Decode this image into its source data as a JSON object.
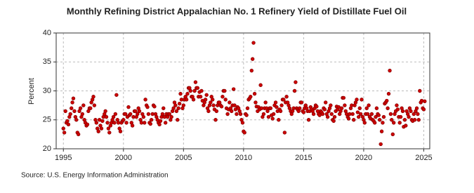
{
  "chart_data": {
    "type": "scatter",
    "title": "Monthly Refining District Appalachian No. 1 Refinery Yield of Distillate Fuel Oil",
    "y_label": "Percent",
    "source": "Source: U.S. Energy Information Administration",
    "color": "#cc0000",
    "grid": true,
    "xlim": [
      1994.4,
      2025.5
    ],
    "xticks": [
      1995,
      2000,
      2005,
      2010,
      2015,
      2020,
      2025
    ],
    "ylim": [
      20,
      40
    ],
    "yticks": [
      20,
      25,
      30,
      35,
      40
    ],
    "x": [
      1995,
      1995.08,
      1995.17,
      1995.25,
      1995.33,
      1995.42,
      1995.5,
      1995.58,
      1995.67,
      1995.75,
      1995.83,
      1995.92,
      1996,
      1996.08,
      1996.17,
      1996.25,
      1996.33,
      1996.42,
      1996.5,
      1996.58,
      1996.67,
      1996.75,
      1996.83,
      1996.92,
      1997,
      1997.08,
      1997.17,
      1997.25,
      1997.33,
      1997.42,
      1997.5,
      1997.58,
      1997.67,
      1997.75,
      1997.83,
      1997.92,
      1998,
      1998.08,
      1998.17,
      1998.25,
      1998.33,
      1998.42,
      1998.5,
      1998.58,
      1998.67,
      1998.75,
      1998.83,
      1998.92,
      1999,
      1999.08,
      1999.17,
      1999.25,
      1999.33,
      1999.42,
      1999.5,
      1999.58,
      1999.67,
      1999.75,
      1999.83,
      1999.92,
      2000,
      2000.08,
      2000.17,
      2000.25,
      2000.33,
      2000.42,
      2000.5,
      2000.58,
      2000.67,
      2000.75,
      2000.83,
      2000.92,
      2001,
      2001.08,
      2001.17,
      2001.25,
      2001.33,
      2001.42,
      2001.5,
      2001.58,
      2001.67,
      2001.75,
      2001.83,
      2001.92,
      2002,
      2002.08,
      2002.17,
      2002.25,
      2002.33,
      2002.42,
      2002.5,
      2002.58,
      2002.67,
      2002.75,
      2002.83,
      2002.92,
      2003,
      2003.08,
      2003.17,
      2003.25,
      2003.33,
      2003.42,
      2003.5,
      2003.58,
      2003.67,
      2003.75,
      2003.83,
      2003.92,
      2004,
      2004.08,
      2004.17,
      2004.25,
      2004.33,
      2004.42,
      2004.5,
      2004.58,
      2004.67,
      2004.75,
      2004.83,
      2004.92,
      2005,
      2005.08,
      2005.17,
      2005.25,
      2005.33,
      2005.42,
      2005.5,
      2005.58,
      2005.67,
      2005.75,
      2005.83,
      2005.92,
      2006,
      2006.08,
      2006.17,
      2006.25,
      2006.33,
      2006.42,
      2006.5,
      2006.58,
      2006.67,
      2006.75,
      2006.83,
      2006.92,
      2007,
      2007.08,
      2007.17,
      2007.25,
      2007.33,
      2007.42,
      2007.5,
      2007.58,
      2007.67,
      2007.75,
      2007.83,
      2007.92,
      2008,
      2008.08,
      2008.17,
      2008.25,
      2008.33,
      2008.42,
      2008.5,
      2008.58,
      2008.67,
      2008.75,
      2008.83,
      2008.92,
      2009,
      2009.08,
      2009.17,
      2009.25,
      2009.33,
      2009.42,
      2009.5,
      2009.58,
      2009.67,
      2009.75,
      2009.83,
      2009.92,
      2010,
      2010.08,
      2010.17,
      2010.25,
      2010.33,
      2010.42,
      2010.5,
      2010.58,
      2010.67,
      2010.75,
      2010.83,
      2010.92,
      2011,
      2011.08,
      2011.17,
      2011.25,
      2011.33,
      2011.42,
      2011.5,
      2011.58,
      2011.67,
      2011.75,
      2011.83,
      2011.92,
      2012,
      2012.08,
      2012.17,
      2012.25,
      2012.33,
      2012.42,
      2012.5,
      2012.58,
      2012.67,
      2012.75,
      2012.83,
      2012.92,
      2013,
      2013.08,
      2013.17,
      2013.25,
      2013.33,
      2013.42,
      2013.5,
      2013.58,
      2013.67,
      2013.75,
      2013.83,
      2013.92,
      2014,
      2014.08,
      2014.17,
      2014.25,
      2014.33,
      2014.42,
      2014.5,
      2014.58,
      2014.67,
      2014.75,
      2014.83,
      2014.92,
      2015,
      2015.08,
      2015.17,
      2015.25,
      2015.33,
      2015.42,
      2015.5,
      2015.58,
      2015.67,
      2015.75,
      2015.83,
      2015.92,
      2016,
      2016.08,
      2016.17,
      2016.25,
      2016.33,
      2016.42,
      2016.5,
      2016.58,
      2016.67,
      2016.75,
      2016.83,
      2016.92,
      2017,
      2017.08,
      2017.17,
      2017.25,
      2017.33,
      2017.42,
      2017.5,
      2017.58,
      2017.67,
      2017.75,
      2017.83,
      2017.92,
      2018,
      2018.08,
      2018.17,
      2018.25,
      2018.33,
      2018.42,
      2018.5,
      2018.58,
      2018.67,
      2018.75,
      2018.83,
      2018.92,
      2019,
      2019.08,
      2019.17,
      2019.25,
      2019.33,
      2019.42,
      2019.5,
      2019.58,
      2019.67,
      2019.75,
      2019.83,
      2019.92,
      2020,
      2020.08,
      2020.17,
      2020.25,
      2020.33,
      2020.42,
      2020.5,
      2020.58,
      2020.67,
      2020.75,
      2020.83,
      2020.92,
      2021,
      2021.08,
      2021.17,
      2021.25,
      2021.33,
      2021.42,
      2021.5,
      2021.58,
      2021.67,
      2021.75,
      2021.83,
      2021.92,
      2022,
      2022.08,
      2022.17,
      2022.25,
      2022.33,
      2022.42,
      2022.5,
      2022.58,
      2022.67,
      2022.75,
      2022.83,
      2022.92,
      2023,
      2023.08,
      2023.17,
      2023.25,
      2023.33,
      2023.42,
      2023.5,
      2023.58,
      2023.67,
      2023.75,
      2023.83,
      2023.92,
      2024,
      2024.08,
      2024.17,
      2024.25,
      2024.33,
      2024.42,
      2024.5,
      2024.58,
      2024.67,
      2024.75,
      2024.83,
      2024.92,
      2025,
      2025.08
    ],
    "values": [
      23.5,
      22.8,
      26.5,
      24.5,
      24.8,
      24.2,
      25.5,
      26,
      27,
      28,
      28.7,
      26.5,
      25.5,
      25,
      22.8,
      22.5,
      26.5,
      27,
      25.5,
      26,
      27.5,
      25,
      24.5,
      24,
      24.2,
      26.5,
      27,
      27,
      28,
      28.5,
      29,
      27.5,
      25,
      24.5,
      23.5,
      23,
      25,
      24,
      23.5,
      24.8,
      25.5,
      26,
      26.5,
      25.5,
      24.5,
      23.5,
      22.8,
      24,
      24.5,
      25,
      25.5,
      24.5,
      26,
      29.3,
      25,
      24.5,
      23.5,
      23,
      24.5,
      24.8,
      25,
      26,
      26,
      24.5,
      25.5,
      27.2,
      25.8,
      26,
      24.5,
      24,
      25.5,
      26.5,
      26.5,
      25.5,
      26,
      27,
      26.5,
      25,
      24.5,
      26,
      25.5,
      24.5,
      28.5,
      27.5,
      27.2,
      26,
      24.5,
      24.3,
      25,
      26,
      27.5,
      27.3,
      26,
      25.5,
      25,
      24.5,
      24.2,
      24.8,
      25.5,
      26,
      27,
      25.5,
      24.5,
      26,
      25.5,
      26,
      26,
      25,
      25.5,
      26.5,
      27,
      28,
      27.5,
      26.5,
      25,
      27,
      27.8,
      29.5,
      28.5,
      27,
      27.5,
      28.5,
      29,
      28.5,
      29.5,
      30.5,
      30.5,
      30,
      29,
      29,
      28.5,
      30,
      31.5,
      30.5,
      30.5,
      29,
      29.8,
      29,
      30,
      28.3,
      27.5,
      28,
      28.5,
      29.3,
      27,
      26.5,
      27.5,
      28,
      29,
      28.5,
      27.5,
      26.8,
      25,
      26.5,
      27.5,
      28,
      28,
      27.5,
      27.3,
      29,
      30,
      30,
      28.5,
      27,
      26,
      26.8,
      28,
      27,
      26.5,
      27.5,
      30.3,
      27.5,
      26.8,
      26,
      27.2,
      27,
      26.5,
      26,
      25,
      24.5,
      23,
      22.8,
      26,
      25.8,
      27,
      28.5,
      28.7,
      29,
      33.5,
      35.5,
      38.3,
      29.5,
      28,
      27.3,
      26.5,
      27.2,
      26.8,
      31,
      27,
      25.5,
      26,
      27,
      28,
      27,
      26.5,
      25.5,
      27,
      27,
      25.8,
      25.2,
      26,
      27.5,
      28,
      27.2,
      26.5,
      25,
      26.8,
      26.5,
      27.5,
      28.5,
      28.5,
      22.8,
      28,
      29,
      28,
      27.5,
      27,
      26.5,
      26,
      26.5,
      27,
      30,
      31.5,
      27,
      26.8,
      26.5,
      27,
      28,
      28,
      26.5,
      26.3,
      27,
      27.5,
      27,
      26.5,
      25,
      26.5,
      27.2,
      26.8,
      26.5,
      26,
      27,
      27.5,
      27.3,
      26.5,
      26,
      25.8,
      26.5,
      26.3,
      26,
      27,
      26.8,
      28,
      26,
      25.5,
      26.5,
      27,
      27.5,
      26,
      25,
      24.8,
      25.5,
      26.5,
      27.3,
      26.8,
      27.2,
      26,
      26.5,
      27,
      28.8,
      28.8,
      27.5,
      26.5,
      26,
      25.5,
      25.2,
      26,
      27,
      27.5,
      26,
      25,
      27.5,
      28,
      28.5,
      26.3,
      25.5,
      27,
      26,
      28.5,
      25.5,
      25,
      24.5,
      26,
      27,
      26,
      27.5,
      25.5,
      25.2,
      26,
      25,
      24.8,
      24.5,
      25.5,
      27,
      26,
      25.8,
      25,
      20.8,
      23,
      24.5,
      25.5,
      27.8,
      28,
      28.3,
      27,
      29.5,
      33.5,
      26,
      25,
      22.5,
      24.5,
      26,
      26.5,
      27.5,
      26.8,
      25.5,
      24.5,
      25.5,
      27,
      26.5,
      23.8,
      25,
      24,
      26.5,
      26,
      25.5,
      27,
      26.5,
      25,
      24.8,
      26,
      25,
      26.5,
      27,
      26,
      25,
      30,
      28,
      28.3,
      27,
      26.8,
      28.2
    ]
  }
}
